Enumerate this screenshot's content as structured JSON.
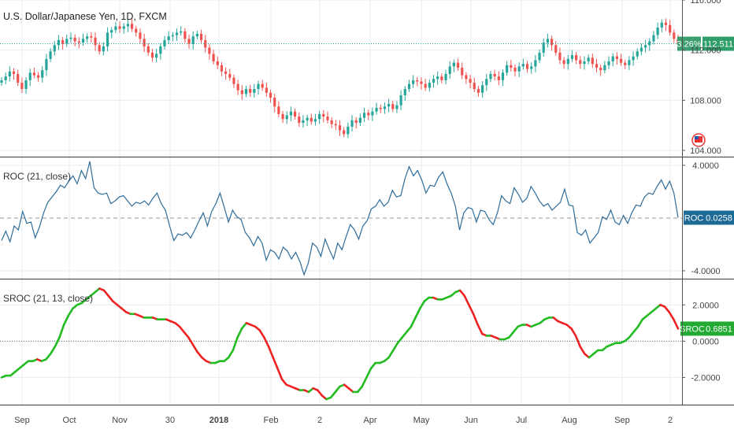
{
  "chart_data": [
    {
      "type": "candlestick",
      "title": "U.S. Dollar/Japanese Yen, 1D, FXCM",
      "ylim": [
        103.5,
        116.0
      ],
      "yticks": [
        "116.000",
        "112.000",
        "108.000",
        "104.000"
      ],
      "tick_values": [
        116,
        112,
        108,
        104
      ],
      "last_price": "112.511",
      "last_price_value": 112.511,
      "change_pct": "3.26%",
      "line_value": 112.511,
      "colors": {
        "up": "#26a69a",
        "down": "#ef5350",
        "line": "#26a69a",
        "badge": "#2e9e6a"
      },
      "closes": [
        109.6,
        109.9,
        110.3,
        110.1,
        109.4,
        108.9,
        109.6,
        110.2,
        110.0,
        109.8,
        110.4,
        111.3,
        111.9,
        112.4,
        112.8,
        112.5,
        112.9,
        113.0,
        112.7,
        112.6,
        112.9,
        113.1,
        113.0,
        112.4,
        111.9,
        112.3,
        113.4,
        113.6,
        113.9,
        113.7,
        113.9,
        114.1,
        113.7,
        113.4,
        112.9,
        112.3,
        111.8,
        111.4,
        111.7,
        112.3,
        112.8,
        113.1,
        113.2,
        113.4,
        113.5,
        112.9,
        112.5,
        113.1,
        113.3,
        112.8,
        112.2,
        111.7,
        111.1,
        110.8,
        110.3,
        110.1,
        109.8,
        109.3,
        108.8,
        108.5,
        108.9,
        108.6,
        108.9,
        109.3,
        109.0,
        108.6,
        108.2,
        107.5,
        106.9,
        106.5,
        106.8,
        107.1,
        106.7,
        106.2,
        106.4,
        106.6,
        106.3,
        106.5,
        106.9,
        106.7,
        106.4,
        106.1,
        106.0,
        105.6,
        105.3,
        105.9,
        106.4,
        106.2,
        106.6,
        107.0,
        106.8,
        107.1,
        107.4,
        107.3,
        107.5,
        107.7,
        107.3,
        107.6,
        108.4,
        108.9,
        109.3,
        109.6,
        109.5,
        109.3,
        109.0,
        109.4,
        109.7,
        109.9,
        109.6,
        110.1,
        110.7,
        111.0,
        110.6,
        110.0,
        109.7,
        109.4,
        108.9,
        108.6,
        109.2,
        109.7,
        110.1,
        109.9,
        109.6,
        110.2,
        110.8,
        110.6,
        110.3,
        110.7,
        110.9,
        110.5,
        110.7,
        111.2,
        111.8,
        112.6,
        112.9,
        112.4,
        111.8,
        111.2,
        110.9,
        111.3,
        111.6,
        111.2,
        110.9,
        111.1,
        111.4,
        110.9,
        110.6,
        110.4,
        110.8,
        111.1,
        111.5,
        111.3,
        111.0,
        110.8,
        111.2,
        111.5,
        111.9,
        112.2,
        112.4,
        112.7,
        113.2,
        113.8,
        114.2,
        114.0,
        113.4,
        112.9,
        112.5
      ]
    },
    {
      "type": "line",
      "title": "ROC (21, close)",
      "ylim": [
        -4.6,
        4.6
      ],
      "yticks": [
        "4.0000",
        "-4.0000"
      ],
      "tick_values": [
        4,
        -4
      ],
      "zero_line": 0,
      "last_value": "0.0258",
      "badge_label": "ROC",
      "color": "#2e6c9a",
      "values": [
        -1.7,
        -1.0,
        -1.8,
        -0.6,
        -0.9,
        0.5,
        -0.4,
        -0.3,
        -1.5,
        -0.7,
        0.4,
        1.2,
        1.6,
        2.0,
        2.5,
        2.3,
        2.8,
        3.2,
        2.6,
        3.6,
        3.0,
        4.3,
        2.3,
        1.9,
        1.8,
        1.9,
        1.1,
        1.3,
        1.6,
        1.7,
        1.3,
        0.9,
        1.2,
        1.1,
        1.3,
        1.0,
        1.5,
        1.9,
        1.1,
        0.6,
        -0.6,
        -1.7,
        -1.2,
        -1.3,
        -1.1,
        -1.5,
        -0.9,
        -0.2,
        0.4,
        -0.6,
        0.5,
        1.1,
        1.9,
        0.8,
        -0.3,
        0.6,
        0.1,
        -0.1,
        -1.1,
        -1.5,
        -2.1,
        -1.4,
        -1.9,
        -3.2,
        -2.4,
        -2.6,
        -3.1,
        -2.2,
        -2.5,
        -3.1,
        -2.6,
        -3.3,
        -4.3,
        -3.4,
        -1.9,
        -2.2,
        -2.9,
        -1.6,
        -2.4,
        -3.1,
        -1.9,
        -2.4,
        -1.4,
        -0.5,
        -0.9,
        -1.6,
        -0.6,
        -0.2,
        0.7,
        0.9,
        1.4,
        0.9,
        1.2,
        2.1,
        1.6,
        1.7,
        3.0,
        3.9,
        3.2,
        3.6,
        2.9,
        1.9,
        2.5,
        2.4,
        3.1,
        3.5,
        2.6,
        1.9,
        0.9,
        -0.9,
        0.4,
        0.8,
        0.7,
        -0.3,
        0.6,
        0.5,
        -0.1,
        -0.5,
        0.4,
        1.7,
        1.3,
        1.1,
        2.3,
        1.8,
        1.2,
        1.5,
        2.4,
        1.9,
        1.3,
        0.9,
        1.1,
        0.6,
        0.9,
        1.2,
        2.2,
        1.0,
        0.9,
        -1.1,
        -1.3,
        -0.9,
        -1.9,
        -1.5,
        -1.1,
        0.1,
        -0.1,
        0.6,
        -0.3,
        -0.5,
        0.2,
        -0.4,
        0.4,
        1.0,
        0.9,
        1.6,
        1.9,
        1.8,
        2.4,
        2.9,
        2.2,
        2.8,
        1.9,
        0.03
      ]
    },
    {
      "type": "line",
      "title": "SROC (21, 13, close)",
      "ylim": [
        -3.5,
        3.4
      ],
      "yticks": [
        "2.0000",
        "0.0000",
        "-2.0000"
      ],
      "tick_values": [
        2,
        0,
        -2
      ],
      "zero_line": 0,
      "last_value": "0.6851",
      "badge_label": "SROC",
      "colors": {
        "up": "#22bb22",
        "down": "#ee2222",
        "badge": "#22aa33"
      },
      "values": [
        -2.0,
        -1.9,
        -1.9,
        -1.7,
        -1.5,
        -1.3,
        -1.1,
        -1.1,
        -1.0,
        -1.1,
        -1.0,
        -0.7,
        -0.3,
        0.2,
        0.9,
        1.4,
        1.8,
        2.0,
        2.1,
        2.3,
        2.5,
        2.7,
        2.9,
        2.8,
        2.5,
        2.2,
        2.0,
        1.8,
        1.6,
        1.5,
        1.5,
        1.4,
        1.3,
        1.3,
        1.3,
        1.2,
        1.2,
        1.2,
        1.1,
        1.0,
        0.8,
        0.5,
        0.2,
        -0.2,
        -0.6,
        -0.9,
        -1.1,
        -1.2,
        -1.2,
        -1.1,
        -1.1,
        -0.9,
        -0.5,
        0.2,
        0.7,
        1.0,
        0.9,
        0.8,
        0.6,
        0.2,
        -0.3,
        -0.9,
        -1.5,
        -2.1,
        -2.4,
        -2.5,
        -2.6,
        -2.7,
        -2.7,
        -2.8,
        -2.6,
        -2.7,
        -3.0,
        -3.2,
        -3.1,
        -2.8,
        -2.5,
        -2.4,
        -2.6,
        -2.8,
        -2.8,
        -2.5,
        -2.0,
        -1.5,
        -1.2,
        -1.2,
        -1.1,
        -0.9,
        -0.5,
        -0.1,
        0.2,
        0.5,
        0.8,
        1.3,
        1.8,
        2.2,
        2.4,
        2.4,
        2.3,
        2.3,
        2.4,
        2.5,
        2.7,
        2.8,
        2.5,
        2.0,
        1.5,
        0.9,
        0.4,
        0.3,
        0.3,
        0.2,
        0.1,
        0.1,
        0.2,
        0.5,
        0.8,
        0.9,
        0.9,
        0.8,
        0.9,
        1.0,
        1.2,
        1.3,
        1.3,
        1.1,
        1.0,
        0.9,
        0.7,
        0.3,
        -0.3,
        -0.7,
        -0.9,
        -0.7,
        -0.5,
        -0.5,
        -0.3,
        -0.2,
        -0.1,
        -0.1,
        0.0,
        0.2,
        0.5,
        0.8,
        1.2,
        1.4,
        1.6,
        1.8,
        2.0,
        1.9,
        1.6,
        1.2,
        0.69
      ]
    }
  ],
  "x_axis": {
    "labels": [
      "Sep",
      "Oct",
      "Nov",
      "30",
      "2018",
      "Feb",
      "2",
      "Apr",
      "May",
      "Jun",
      "Jul",
      "Aug",
      "Sep",
      "2"
    ],
    "bold": [
      "2018"
    ]
  },
  "icons": {
    "alert": "us-flag-icon"
  }
}
